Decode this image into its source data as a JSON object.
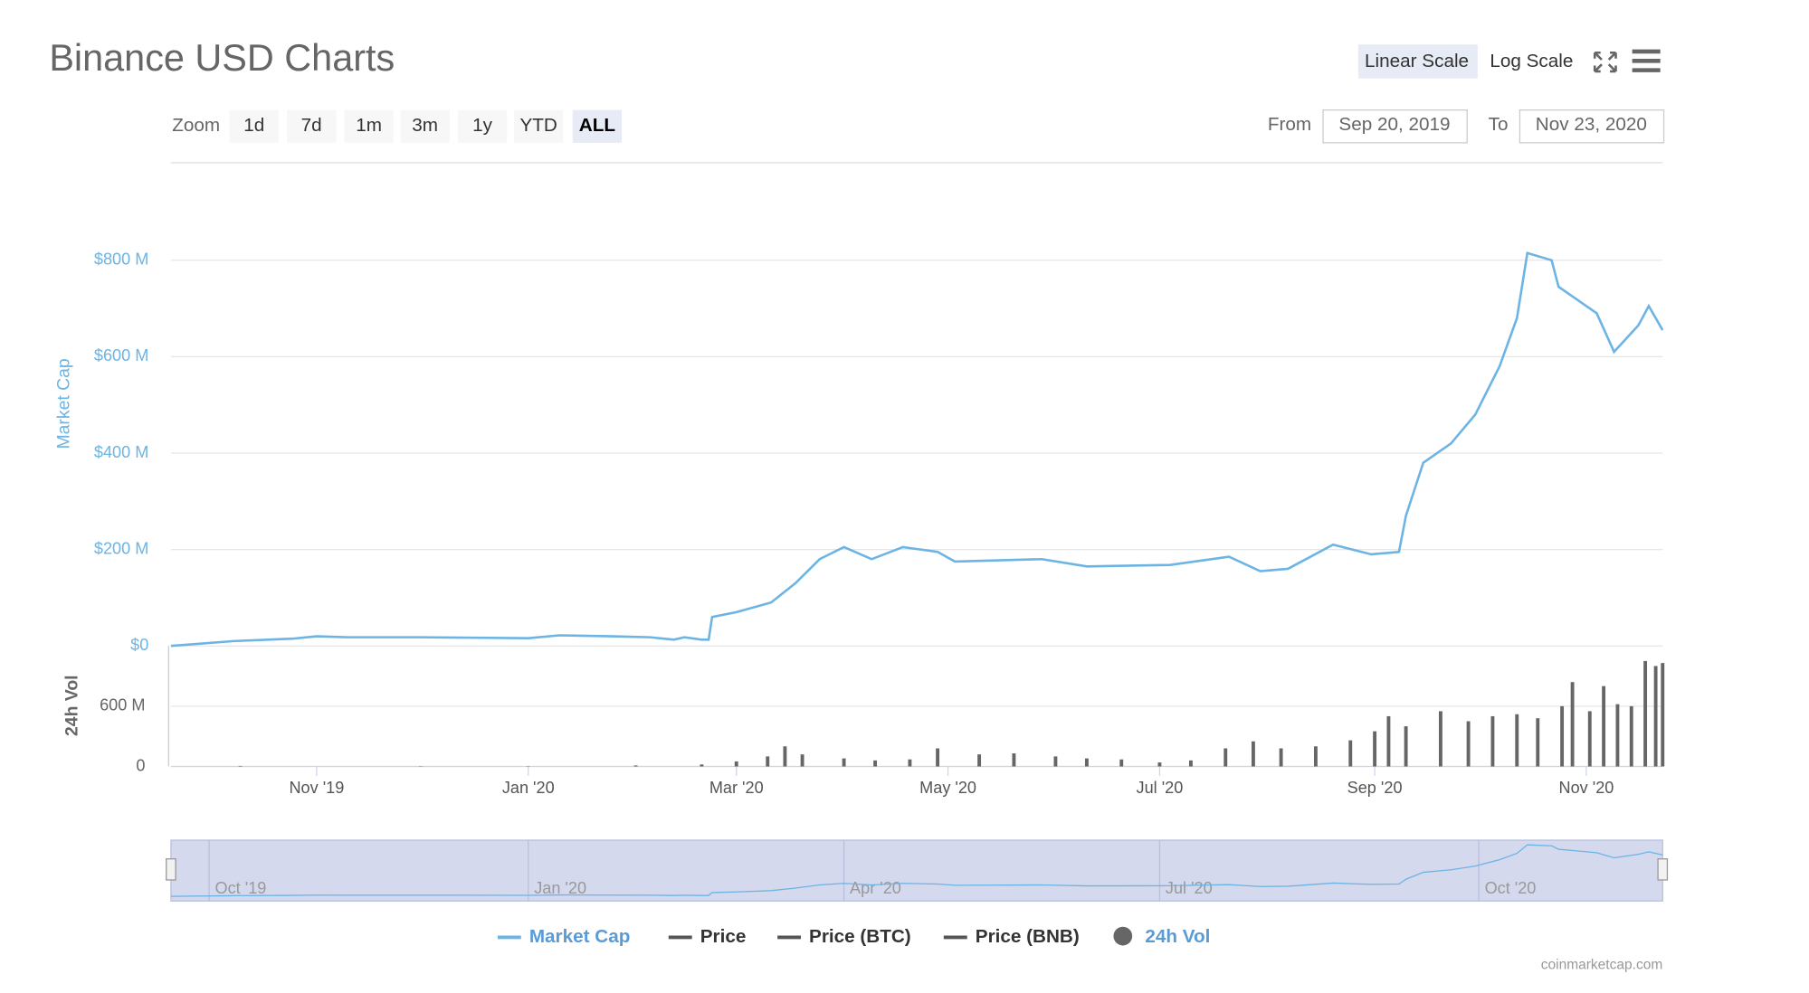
{
  "title": "Binance USD Charts",
  "scale_buttons": [
    "Linear Scale",
    "Log Scale"
  ],
  "zoom": {
    "label": "Zoom",
    "buttons": [
      "1d",
      "7d",
      "1m",
      "3m",
      "1y",
      "YTD",
      "ALL"
    ],
    "active": "ALL"
  },
  "range": {
    "from_label": "From",
    "from": "Sep 20, 2019",
    "to_label": "To",
    "to": "Nov 23, 2020"
  },
  "credit": "coinmarketcap.com",
  "chart_data": {
    "type": "line",
    "log_scale": false,
    "grid": true,
    "ylabel": "Market Cap",
    "y2label": "24h Vol",
    "xlim": [
      "2019-09-20",
      "2020-11-23"
    ],
    "xticks": [
      {
        "value": "2019-11-01",
        "label": "Nov '19"
      },
      {
        "value": "2020-01-01",
        "label": "Jan '20"
      },
      {
        "value": "2020-03-01",
        "label": "Mar '20"
      },
      {
        "value": "2020-05-01",
        "label": "May '20"
      },
      {
        "value": "2020-07-01",
        "label": "Jul '20"
      },
      {
        "value": "2020-09-01",
        "label": "Sep '20"
      },
      {
        "value": "2020-11-01",
        "label": "Nov '20"
      }
    ],
    "navigator_xticks": [
      {
        "value": "2019-10-01",
        "label": "Oct '19"
      },
      {
        "value": "2020-01-01",
        "label": "Jan '20"
      },
      {
        "value": "2020-04-01",
        "label": "Apr '20"
      },
      {
        "value": "2020-07-01",
        "label": "Jul '20"
      },
      {
        "value": "2020-10-01",
        "label": "Oct '20"
      }
    ],
    "ylim": [
      0,
      1000
    ],
    "yticks": [
      {
        "value": 0,
        "label": "$0"
      },
      {
        "value": 200,
        "label": "$200 M"
      },
      {
        "value": 400,
        "label": "$400 M"
      },
      {
        "value": 600,
        "label": "$600 M"
      },
      {
        "value": 800,
        "label": "$800 M"
      }
    ],
    "y2lim": [
      0,
      1200
    ],
    "y2ticks": [
      0,
      {
        "value": 600,
        "label": "600 M"
      }
    ],
    "series": [
      {
        "name": "Market Cap",
        "color": "#6cb4e4",
        "x": [
          "2019-09-20",
          "2019-10-08",
          "2019-10-25",
          "2019-11-01",
          "2019-11-10",
          "2019-12-01",
          "2020-01-01",
          "2020-01-10",
          "2020-01-25",
          "2020-02-05",
          "2020-02-12",
          "2020-02-15",
          "2020-02-20",
          "2020-02-22",
          "2020-02-23",
          "2020-03-01",
          "2020-03-11",
          "2020-03-18",
          "2020-03-25",
          "2020-04-01",
          "2020-04-09",
          "2020-04-18",
          "2020-04-28",
          "2020-05-03",
          "2020-05-28",
          "2020-06-10",
          "2020-07-04",
          "2020-07-21",
          "2020-07-30",
          "2020-08-07",
          "2020-08-20",
          "2020-08-31",
          "2020-09-08",
          "2020-09-10",
          "2020-09-15",
          "2020-09-23",
          "2020-09-30",
          "2020-10-07",
          "2020-10-12",
          "2020-10-15",
          "2020-10-22",
          "2020-10-24",
          "2020-10-30",
          "2020-11-04",
          "2020-11-09",
          "2020-11-16",
          "2020-11-19",
          "2020-11-23"
        ],
        "values": [
          0,
          10,
          15,
          20,
          18,
          18,
          16,
          22,
          20,
          18,
          13,
          18,
          13,
          13,
          60,
          70,
          90,
          130,
          180,
          205,
          180,
          205,
          195,
          175,
          180,
          165,
          168,
          185,
          155,
          160,
          210,
          190,
          195,
          270,
          380,
          420,
          480,
          580,
          680,
          815,
          800,
          745,
          715,
          690,
          610,
          665,
          705,
          655
        ]
      },
      {
        "name": "Price",
        "color": "#555555"
      },
      {
        "name": "Price (BTC)",
        "color": "#555555"
      },
      {
        "name": "Price (BNB)",
        "color": "#555555"
      },
      {
        "name": "24h Vol",
        "color": "#666666",
        "axis": "y2",
        "x": [
          "2019-10-10",
          "2019-12-01",
          "2020-01-01",
          "2020-02-01",
          "2020-02-20",
          "2020-03-01",
          "2020-03-10",
          "2020-03-15",
          "2020-03-20",
          "2020-04-01",
          "2020-04-10",
          "2020-04-20",
          "2020-04-28",
          "2020-05-10",
          "2020-05-20",
          "2020-06-01",
          "2020-06-10",
          "2020-06-20",
          "2020-07-01",
          "2020-07-10",
          "2020-07-20",
          "2020-07-28",
          "2020-08-05",
          "2020-08-15",
          "2020-08-25",
          "2020-09-01",
          "2020-09-05",
          "2020-09-10",
          "2020-09-20",
          "2020-09-28",
          "2020-10-05",
          "2020-10-12",
          "2020-10-18",
          "2020-10-25",
          "2020-10-28",
          "2020-11-02",
          "2020-11-06",
          "2020-11-10",
          "2020-11-14",
          "2020-11-18",
          "2020-11-21",
          "2020-11-23"
        ],
        "values": [
          5,
          3,
          3,
          10,
          20,
          50,
          100,
          200,
          120,
          80,
          60,
          70,
          180,
          120,
          130,
          100,
          80,
          70,
          40,
          60,
          180,
          250,
          180,
          200,
          260,
          350,
          500,
          400,
          550,
          450,
          500,
          520,
          480,
          600,
          840,
          550,
          800,
          620,
          600,
          1050,
          1000,
          1030
        ]
      }
    ]
  }
}
